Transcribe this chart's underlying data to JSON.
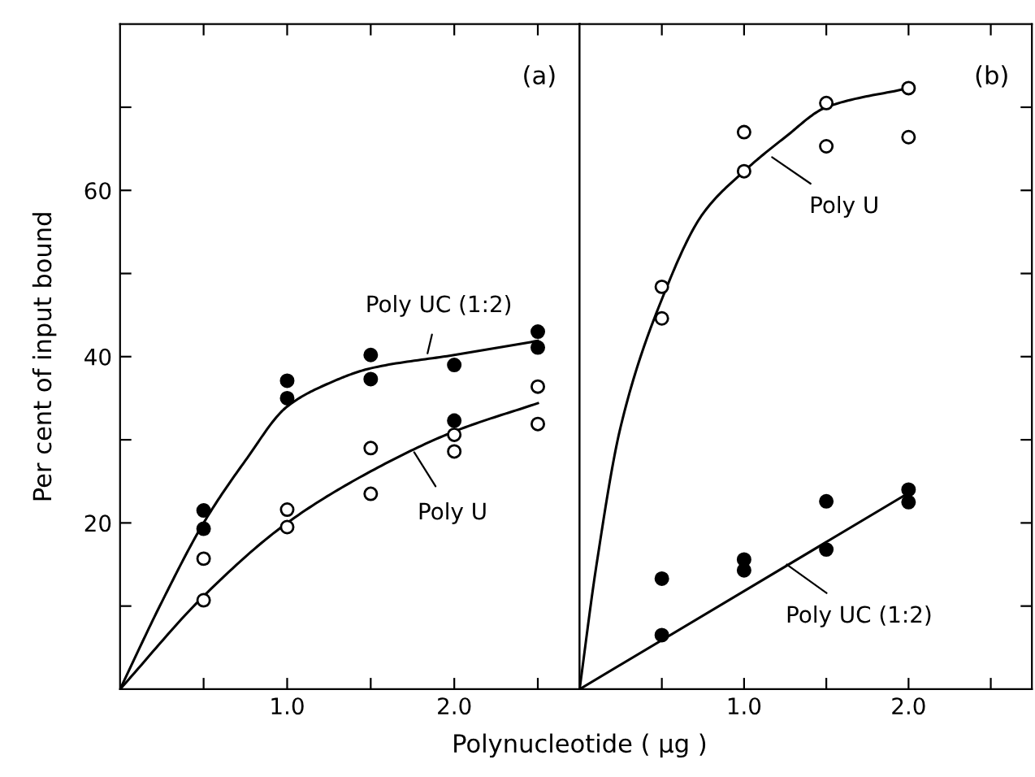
{
  "chart_data": [
    {
      "type": "scatter",
      "title": "(a)",
      "ylabel": "Per cent of input bound",
      "xlabel": "Polynucleotide ( μg )",
      "xlim": [
        0,
        2.75
      ],
      "ylim": [
        0,
        80
      ],
      "xticks": [
        {
          "value": 0.5,
          "label": null
        },
        {
          "value": 1.0,
          "label": "1.0"
        },
        {
          "value": 1.5,
          "label": null
        },
        {
          "value": 2.0,
          "label": "2.0"
        },
        {
          "value": 2.5,
          "label": null
        }
      ],
      "yticks": [
        {
          "value": 10,
          "label": null
        },
        20,
        {
          "value": 30,
          "label": null
        },
        40,
        {
          "value": 50,
          "label": null
        },
        60,
        {
          "value": 70,
          "label": null
        }
      ],
      "grid": false,
      "series": [
        {
          "marker": "circle",
          "color": "#000000",
          "x": [
            0.5,
            0.5,
            1.0,
            1.0,
            1.5,
            1.5,
            2.0,
            2.0,
            2.5,
            2.5
          ],
          "values": [
            21.5,
            19.3,
            37.1,
            35.0,
            40.2,
            37.3,
            39.0,
            32.3,
            43.0,
            41.1
          ]
        },
        {
          "marker": "circle",
          "color": "#ffffff",
          "x": [
            0.5,
            0.5,
            1.0,
            1.0,
            1.5,
            1.5,
            2.0,
            2.0,
            2.5,
            2.5
          ],
          "values": [
            15.7,
            10.7,
            21.6,
            19.5,
            29.0,
            23.5,
            30.6,
            28.6,
            36.4,
            31.9
          ]
        },
        {
          "type": "line",
          "marker": "none",
          "color": "#000000",
          "x": [
            0,
            0.25,
            0.5,
            0.75,
            1.0,
            1.25,
            1.5,
            2.0,
            2.5
          ],
          "values": [
            0,
            10.5,
            20,
            27.5,
            34,
            36.8,
            38.6,
            40.2,
            41.9
          ]
        },
        {
          "type": "line",
          "marker": "none",
          "color": "#000000",
          "x": [
            0,
            0.5,
            1.0,
            1.5,
            2.0,
            2.5
          ],
          "values": [
            0,
            11.2,
            20,
            26.2,
            31,
            34.4
          ]
        }
      ],
      "annotations": [
        {
          "text": "Poly UC (1:2)",
          "x": 1.84,
          "y": 40.4
        },
        {
          "text": "Poly U",
          "x": 1.76,
          "y": 28.5
        }
      ]
    },
    {
      "type": "scatter",
      "title": "(b)",
      "xlim": [
        0,
        2.75
      ],
      "ylim": [
        0,
        80
      ],
      "xticks": [
        {
          "value": 0.5,
          "label": null
        },
        {
          "value": 1.0,
          "label": "1.0"
        },
        {
          "value": 1.5,
          "label": null
        },
        {
          "value": 2.0,
          "label": "2.0"
        },
        {
          "value": 2.5,
          "label": null
        }
      ],
      "yticks": [
        {
          "value": 10,
          "label": null
        },
        {
          "value": 20,
          "label": null
        },
        {
          "value": 30,
          "label": null
        },
        {
          "value": 40,
          "label": null
        },
        {
          "value": 50,
          "label": null
        },
        {
          "value": 60,
          "label": null
        },
        {
          "value": 70,
          "label": null
        }
      ],
      "tick_labels": "x",
      "grid": false,
      "series": [
        {
          "marker": "circle",
          "color": "#ffffff",
          "x": [
            0.5,
            0.5,
            1.0,
            1.0,
            1.5,
            1.5,
            2.0,
            2.0
          ],
          "values": [
            48.4,
            44.6,
            67.0,
            62.3,
            70.5,
            65.3,
            72.3,
            66.4
          ]
        },
        {
          "marker": "circle",
          "color": "#000000",
          "x": [
            0.5,
            0.5,
            1.0,
            1.0,
            1.5,
            1.5,
            2.0,
            2.0
          ],
          "values": [
            13.3,
            6.5,
            15.6,
            14.3,
            22.6,
            16.8,
            24.0,
            22.5
          ]
        },
        {
          "type": "line",
          "marker": "none",
          "color": "#000000",
          "x": [
            0,
            0.1,
            0.25,
            0.5,
            0.75,
            1.0,
            1.25,
            1.5,
            2.0
          ],
          "values": [
            0,
            14.6,
            31.6,
            46.9,
            57.2,
            62.3,
            66.4,
            70,
            72.3
          ]
        },
        {
          "type": "line",
          "marker": "none",
          "color": "#000000",
          "x": [
            0,
            2.0
          ],
          "values": [
            0,
            23.6
          ]
        }
      ],
      "annotations": [
        {
          "text": "Poly U",
          "x": 1.17,
          "y": 64
        },
        {
          "text": "Poly UC (1:2)",
          "x": 1.26,
          "y": 15
        }
      ]
    }
  ]
}
